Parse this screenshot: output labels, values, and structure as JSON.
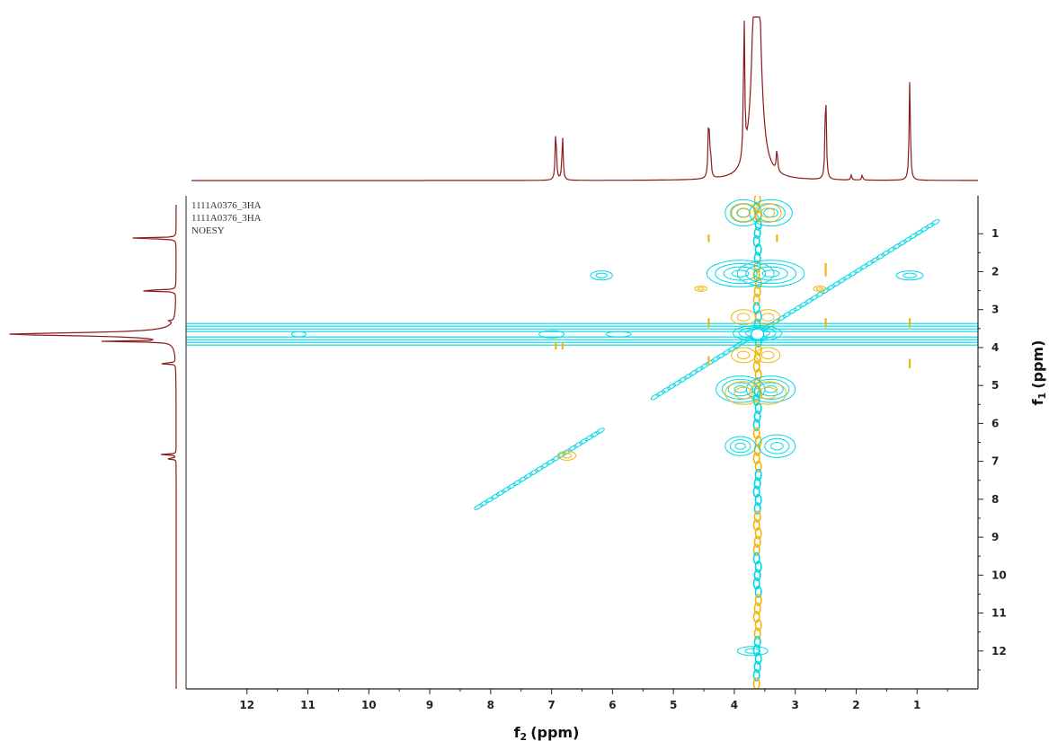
{
  "chart_data": {
    "type": "heatmap",
    "experiment": "NOESY",
    "annotations": [
      "1111A0376_3HA",
      "1111A0376_3HA",
      "NOESY"
    ],
    "xlabel_main": "f",
    "xlabel_sub": "2",
    "xlabel_unit": "(ppm)",
    "ylabel_main": "f",
    "ylabel_sub": "1",
    "ylabel_unit": "(ppm)",
    "xlim": [
      13,
      0
    ],
    "ylim": [
      0,
      13
    ],
    "x_ticks": [
      12,
      11,
      10,
      9,
      8,
      7,
      6,
      5,
      4,
      3,
      2,
      1
    ],
    "y_ticks": [
      1,
      2,
      3,
      4,
      5,
      6,
      7,
      8,
      9,
      10,
      11,
      12
    ],
    "projection_peaks_f2": [
      {
        "ppm": 6.93,
        "height": 0.32
      },
      {
        "ppm": 6.82,
        "height": 0.27
      },
      {
        "ppm": 4.42,
        "height": 0.39
      },
      {
        "ppm": 4.39,
        "height": 0.14
      },
      {
        "ppm": 3.84,
        "height": 0.88
      },
      {
        "ppm": 3.65,
        "height": 1.0
      },
      {
        "ppm": 3.62,
        "height": 1.0
      },
      {
        "ppm": 3.3,
        "height": 0.14
      },
      {
        "ppm": 2.5,
        "height": 0.58
      },
      {
        "ppm": 2.08,
        "height": 0.03
      },
      {
        "ppm": 1.9,
        "height": 0.03
      },
      {
        "ppm": 1.12,
        "height": 0.61
      }
    ],
    "projection_peaks_f1": [
      {
        "ppm": 1.12,
        "height": 0.35
      },
      {
        "ppm": 2.5,
        "height": 0.33
      },
      {
        "ppm": 3.3,
        "height": 0.04
      },
      {
        "ppm": 3.65,
        "height": 1.0
      },
      {
        "ppm": 3.84,
        "height": 0.42
      },
      {
        "ppm": 4.42,
        "height": 0.12
      },
      {
        "ppm": 6.82,
        "height": 0.09
      },
      {
        "ppm": 6.93,
        "height": 0.07
      }
    ],
    "cross_peaks_positive": [
      {
        "x": 6.18,
        "y": 2.1,
        "w": 0.18,
        "h": 0.12,
        "levels": 2
      },
      {
        "x": 3.85,
        "y": 0.45,
        "w": 0.3,
        "h": 0.35,
        "levels": 3
      },
      {
        "x": 3.4,
        "y": 0.45,
        "w": 0.35,
        "h": 0.35,
        "levels": 3
      },
      {
        "x": 3.9,
        "y": 2.05,
        "w": 0.55,
        "h": 0.35,
        "levels": 4
      },
      {
        "x": 3.4,
        "y": 2.05,
        "w": 0.55,
        "h": 0.35,
        "levels": 4
      },
      {
        "x": 1.12,
        "y": 2.1,
        "w": 0.22,
        "h": 0.12,
        "levels": 2
      },
      {
        "x": 3.9,
        "y": 5.1,
        "w": 0.4,
        "h": 0.35,
        "levels": 4
      },
      {
        "x": 3.4,
        "y": 5.1,
        "w": 0.4,
        "h": 0.35,
        "levels": 4
      },
      {
        "x": 3.9,
        "y": 6.6,
        "w": 0.25,
        "h": 0.25,
        "levels": 3
      },
      {
        "x": 3.3,
        "y": 6.6,
        "w": 0.3,
        "h": 0.3,
        "levels": 3
      },
      {
        "x": 3.7,
        "y": 12.0,
        "w": 0.25,
        "h": 0.12,
        "levels": 2
      },
      {
        "x": 3.62,
        "y": 3.62,
        "w": 0.4,
        "h": 0.2,
        "levels": 4
      }
    ],
    "cross_peaks_negative": [
      {
        "x": 3.85,
        "y": 0.45,
        "w": 0.22,
        "h": 0.25
      },
      {
        "x": 3.45,
        "y": 0.45,
        "w": 0.22,
        "h": 0.25
      },
      {
        "x": 3.85,
        "y": 3.2,
        "w": 0.2,
        "h": 0.2
      },
      {
        "x": 3.45,
        "y": 3.2,
        "w": 0.2,
        "h": 0.2
      },
      {
        "x": 3.85,
        "y": 4.2,
        "w": 0.2,
        "h": 0.2
      },
      {
        "x": 3.45,
        "y": 4.2,
        "w": 0.2,
        "h": 0.2
      },
      {
        "x": 3.85,
        "y": 5.2,
        "w": 0.3,
        "h": 0.3
      },
      {
        "x": 3.45,
        "y": 5.2,
        "w": 0.3,
        "h": 0.3
      },
      {
        "x": 6.75,
        "y": 6.85,
        "w": 0.15,
        "h": 0.12
      },
      {
        "x": 2.6,
        "y": 2.45,
        "w": 0.1,
        "h": 0.07
      },
      {
        "x": 4.55,
        "y": 2.45,
        "w": 0.1,
        "h": 0.07
      }
    ],
    "negative_streaks": [
      {
        "x": 4.42,
        "y": 3.35,
        "len": 0.25
      },
      {
        "x": 4.42,
        "y": 4.35,
        "len": 0.25
      },
      {
        "x": 2.5,
        "y": 1.95,
        "len": 0.35
      },
      {
        "x": 2.5,
        "y": 3.35,
        "len": 0.25
      },
      {
        "x": 1.12,
        "y": 3.35,
        "len": 0.25
      },
      {
        "x": 1.12,
        "y": 4.42,
        "len": 0.25
      },
      {
        "x": 4.42,
        "y": 1.12,
        "len": 0.2
      },
      {
        "x": 3.3,
        "y": 1.12,
        "len": 0.2
      },
      {
        "x": 6.93,
        "y": 3.95,
        "len": 0.2
      },
      {
        "x": 6.82,
        "y": 3.95,
        "len": 0.2
      }
    ],
    "ridge_f1": 3.65,
    "ridge_f2": 3.62,
    "diagonal_segments": [
      [
        8.2,
        6.2
      ],
      [
        5.3,
        0.7
      ]
    ],
    "colors": {
      "positive": "#00d8e8",
      "negative": "#f2b60a",
      "projection": "#8b1a1a",
      "axis": "#222222"
    }
  }
}
